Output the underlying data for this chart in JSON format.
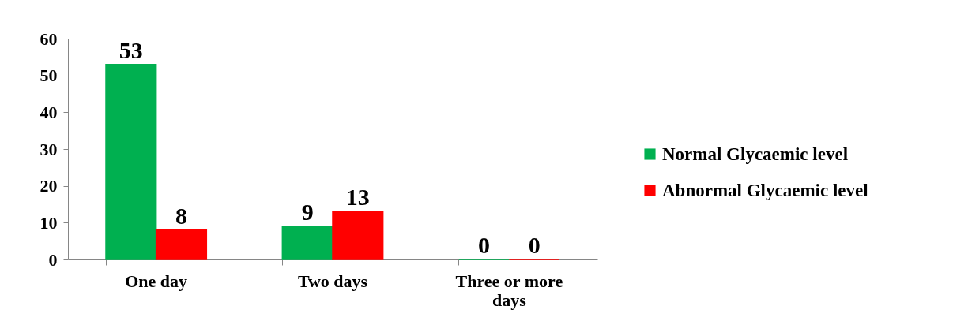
{
  "chart_data": {
    "type": "bar",
    "categories": [
      "One day",
      "Two days",
      "Three or more days"
    ],
    "series": [
      {
        "name": "Normal Glycaemic level",
        "color": "#00b050",
        "values": [
          53,
          9,
          0
        ]
      },
      {
        "name": "Abnormal Glycaemic level",
        "color": "#ff0000",
        "values": [
          8,
          13,
          0
        ]
      }
    ],
    "ylim": [
      0,
      60
    ],
    "yticks": [
      0,
      10,
      20,
      30,
      40,
      50,
      60
    ],
    "grid": false,
    "legend": "right",
    "data_labels": true
  }
}
